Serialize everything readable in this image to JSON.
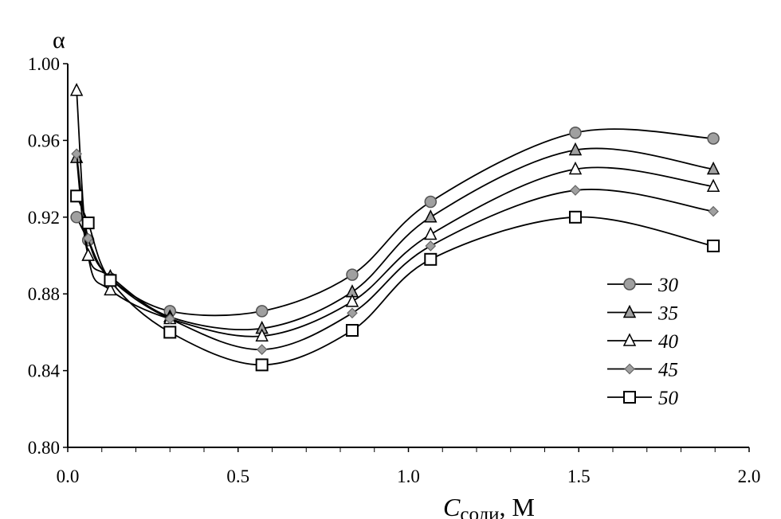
{
  "chart_data": {
    "type": "line",
    "title": "",
    "ylabel": "α",
    "xlabel": {
      "main": "C",
      "subscript": "соли",
      "unit": ", М"
    },
    "xlim": [
      0,
      2.0
    ],
    "ylim": [
      0.8,
      1.0
    ],
    "xticks": [
      "0.0",
      "0.5",
      "1.0",
      "1.5",
      "2.0"
    ],
    "yticks": [
      "0.80",
      "0.84",
      "0.88",
      "0.92",
      "0.96",
      "1.00"
    ],
    "grid": false,
    "legend_position": "right",
    "x": [
      0.026,
      0.06,
      0.125,
      0.3,
      0.57,
      0.835,
      1.065,
      1.49,
      1.895
    ],
    "series": [
      {
        "name": "30",
        "marker": "circle",
        "color": "#a0a0a0",
        "values": [
          0.92,
          0.908,
          0.888,
          0.871,
          0.871,
          0.89,
          0.928,
          0.964,
          0.961
        ]
      },
      {
        "name": "35",
        "marker": "triangle",
        "color": "#a0a0a0",
        "values": [
          0.951,
          0.9,
          0.889,
          0.868,
          0.862,
          0.881,
          0.92,
          0.955,
          0.945
        ]
      },
      {
        "name": "40",
        "marker": "triangle",
        "color": "#ffffff",
        "values": [
          0.986,
          0.9,
          0.882,
          0.867,
          0.858,
          0.876,
          0.911,
          0.945,
          0.936
        ]
      },
      {
        "name": "45",
        "marker": "diamond",
        "color": "#a0a0a0",
        "values": [
          0.953,
          0.909,
          0.888,
          0.867,
          0.851,
          0.87,
          0.905,
          0.934,
          0.923
        ]
      },
      {
        "name": "50",
        "marker": "square",
        "color": "#ffffff",
        "values": [
          0.931,
          0.917,
          0.887,
          0.86,
          0.843,
          0.861,
          0.898,
          0.92,
          0.905
        ]
      }
    ]
  }
}
